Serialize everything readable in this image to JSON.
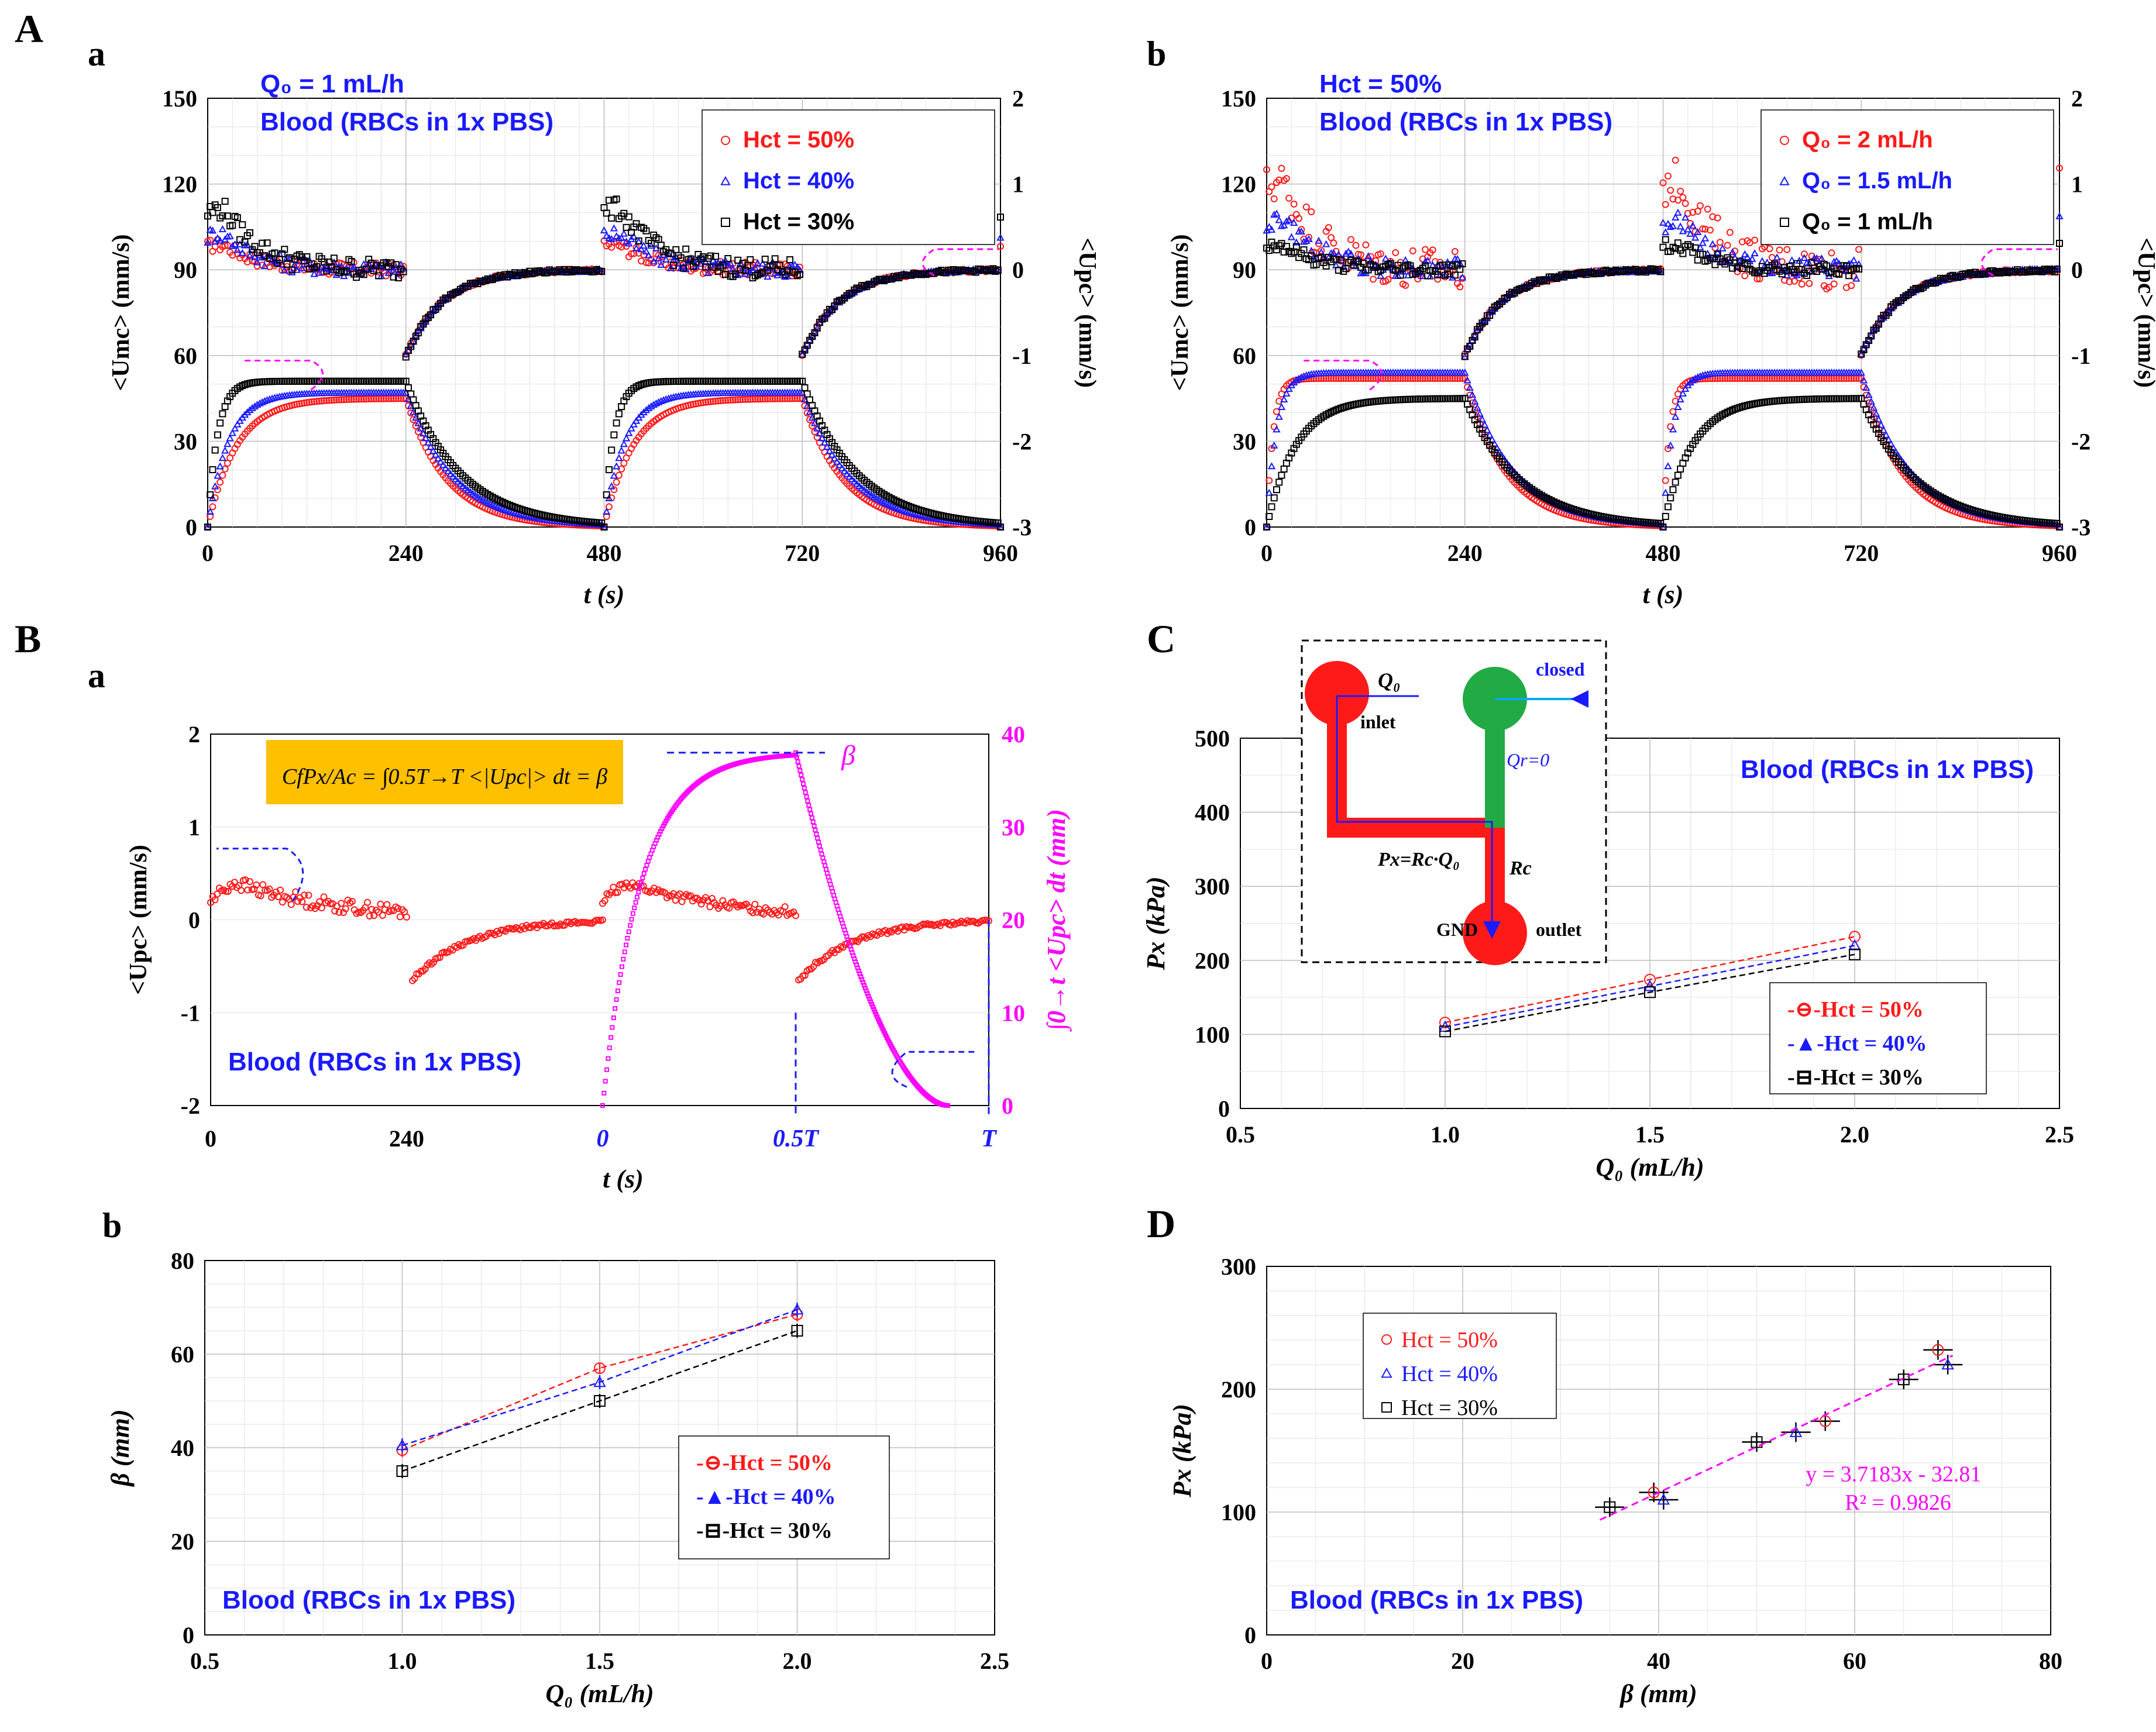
{
  "labels": {
    "A": "A",
    "a1": "a",
    "b1": "b",
    "B": "B",
    "a2": "a",
    "b2": "b",
    "C": "C",
    "D": "D"
  },
  "colors": {
    "red": "#ff1a1a",
    "blue": "#1a1aff",
    "black": "#000000",
    "magenta": "#ff00ff",
    "green": "#22aa44",
    "formula_bg": "#ffc000"
  },
  "chart_data": [
    {
      "id": "Aa",
      "type": "scatter",
      "header": "Q₀ = 1 mL/h",
      "subtitle": "Blood (RBCs in 1x PBS)",
      "xlabel": "t (s)",
      "ylabel": "<Umc> (mm/s)",
      "y2label": "<Upc> (mm/s)",
      "xlim": [
        0,
        960
      ],
      "ylim": [
        0,
        150
      ],
      "y2lim": [
        -3,
        2
      ],
      "xticks": [
        "0",
        "240",
        "480",
        "720",
        "960"
      ],
      "yticks": [
        "0",
        "30",
        "60",
        "90",
        "120",
        "150"
      ],
      "y2ticks": [
        "-3",
        "-2",
        "-1",
        "0",
        "1",
        "2"
      ],
      "legend_position": "top-right",
      "series": [
        {
          "name": "Hct = 50%",
          "color": "#ff1a1a",
          "marker": "circle",
          "tau": 35,
          "plateau": 45,
          "peak_right": 0.45,
          "noise_right": 0.08
        },
        {
          "name": "Hct = 40%",
          "color": "#1a1aff",
          "marker": "triangle",
          "tau": 25,
          "plateau": 47,
          "peak_right": 0.65,
          "noise_right": 0.1
        },
        {
          "name": "Hct = 30%",
          "color": "#000000",
          "marker": "square",
          "tau": 12,
          "plateau": 51,
          "peak_right": 1.1,
          "noise_right": 0.12
        }
      ]
    },
    {
      "id": "Ab",
      "type": "scatter",
      "header": "Hct = 50%",
      "subtitle": "Blood (RBCs in 1x PBS)",
      "xlabel": "t (s)",
      "ylabel": "<Umc> (mm/s)",
      "y2label": "<Upc> (mm/s)",
      "xlim": [
        0,
        960
      ],
      "ylim": [
        0,
        150
      ],
      "y2lim": [
        -3,
        2
      ],
      "xticks": [
        "0",
        "240",
        "480",
        "720",
        "960"
      ],
      "yticks": [
        "0",
        "30",
        "60",
        "90",
        "120",
        "150"
      ],
      "y2ticks": [
        "-3",
        "-2",
        "-1",
        "0",
        "1",
        "2"
      ],
      "legend_position": "top-right",
      "series": [
        {
          "name": "Q₀ = 2 mL/h",
          "color": "#ff1a1a",
          "marker": "circle",
          "tau": 8,
          "plateau": 52,
          "peak_right": 1.6,
          "noise_right": 0.25
        },
        {
          "name": "Q₀ = 1.5 mL/h",
          "color": "#1a1aff",
          "marker": "triangle",
          "tau": 12,
          "plateau": 54,
          "peak_right": 0.9,
          "noise_right": 0.12
        },
        {
          "name": "Q₀ = 1 mL/h",
          "color": "#000000",
          "marker": "square",
          "tau": 35,
          "plateau": 45,
          "peak_right": 0.45,
          "noise_right": 0.08
        }
      ]
    },
    {
      "id": "Ba",
      "type": "scatter",
      "formula": "CfPx/Ac = ∫0.5T→T <|Upc|> dt = β",
      "beta_label": "β",
      "subtitle": "Blood (RBCs in 1x PBS)",
      "xlabel": "t (s)",
      "ylabel": "<Upc> (mm/s)",
      "y2label": "∫0→t <Upc> dt (mm)",
      "ylim": [
        -2,
        2
      ],
      "y2lim": [
        0,
        40
      ],
      "xticks": [
        "0",
        "240"
      ],
      "xticks_blue": [
        "0",
        "0.5T",
        "T"
      ],
      "yticks": [
        "-2",
        "-1",
        "0",
        "1",
        "2"
      ],
      "y2ticks": [
        "0",
        "10",
        "20",
        "30",
        "40"
      ],
      "integral_max": 38
    },
    {
      "id": "Bb",
      "type": "scatter",
      "subtitle": "Blood (RBCs in 1x PBS)",
      "xlabel": "Q₀ (mL/h)",
      "ylabel": "β (mm)",
      "xlim": [
        0.5,
        2.5
      ],
      "ylim": [
        0,
        80
      ],
      "xticks": [
        "0.5",
        "1.0",
        "1.5",
        "2.0",
        "2.5"
      ],
      "yticks": [
        "0",
        "20",
        "40",
        "60",
        "80"
      ],
      "legend_position": "bottom-right",
      "x": [
        1.0,
        1.5,
        2.0
      ],
      "series": [
        {
          "name": "-⊖-Hct = 50%",
          "color": "#ff1a1a",
          "marker": "circle",
          "values": [
            39.5,
            57,
            68.5
          ],
          "err": [
            1.5,
            1,
            1.5
          ]
        },
        {
          "name": "-▲-Hct = 40%",
          "color": "#1a1aff",
          "marker": "triangle",
          "values": [
            40.5,
            54,
            69.5
          ],
          "err": [
            1.5,
            1.5,
            1.5
          ]
        },
        {
          "name": "-⊟-Hct = 30%",
          "color": "#000000",
          "marker": "square",
          "values": [
            35,
            50,
            65
          ],
          "err": [
            1.5,
            1.5,
            1.5
          ]
        }
      ]
    },
    {
      "id": "C",
      "type": "scatter",
      "subtitle": "Blood (RBCs in 1x PBS)",
      "xlabel": "Q₀ (mL/h)",
      "ylabel": "Px (kPa)",
      "xlim": [
        0.5,
        2.5
      ],
      "ylim": [
        0,
        500
      ],
      "xticks": [
        "0.5",
        "1.0",
        "1.5",
        "2.0",
        "2.5"
      ],
      "yticks": [
        "0",
        "100",
        "200",
        "300",
        "400",
        "500"
      ],
      "legend_position": "bottom-right",
      "x": [
        1.0,
        1.5,
        2.0
      ],
      "series": [
        {
          "name": "-⊖-Hct = 50%",
          "color": "#ff1a1a",
          "marker": "circle",
          "values": [
            116,
            174,
            232
          ]
        },
        {
          "name": "-▲-Hct = 40%",
          "color": "#1a1aff",
          "marker": "triangle",
          "values": [
            110,
            165,
            220
          ]
        },
        {
          "name": "-⊟-Hct = 30%",
          "color": "#000000",
          "marker": "square",
          "values": [
            104,
            157,
            208
          ]
        }
      ],
      "inset": {
        "q0": "Q₀",
        "inlet": "inlet",
        "closed": "closed",
        "qr": "Qr=0",
        "px": "Px=Rc·Q₀",
        "rc": "Rc",
        "gnd": "GND",
        "outlet": "outlet"
      }
    },
    {
      "id": "D",
      "type": "scatter",
      "subtitle": "Blood (RBCs in 1x PBS)",
      "xlabel": "β (mm)",
      "ylabel": "Px (kPa)",
      "xlim": [
        0,
        80
      ],
      "ylim": [
        0,
        300
      ],
      "xticks": [
        "0",
        "20",
        "40",
        "60",
        "80"
      ],
      "yticks": [
        "0",
        "100",
        "200",
        "300"
      ],
      "legend_position": "top-left",
      "fit": {
        "slope": 3.7183,
        "intercept": -32.81,
        "x_range": [
          34,
          70
        ],
        "equation": "y = 3.7183x - 32.81",
        "r2": "R² = 0.9826"
      },
      "series": [
        {
          "name": "Hct = 50%",
          "color": "#ff1a1a",
          "marker": "circle",
          "points": [
            [
              39.5,
              116
            ],
            [
              57,
              174
            ],
            [
              68.5,
              232
            ]
          ]
        },
        {
          "name": "Hct = 40%",
          "color": "#1a1aff",
          "marker": "triangle",
          "points": [
            [
              40.5,
              110
            ],
            [
              54,
              165
            ],
            [
              69.5,
              220
            ]
          ]
        },
        {
          "name": "Hct = 30%",
          "color": "#000000",
          "marker": "square",
          "points": [
            [
              35,
              104
            ],
            [
              50,
              157
            ],
            [
              65,
              208
            ]
          ]
        }
      ]
    }
  ]
}
